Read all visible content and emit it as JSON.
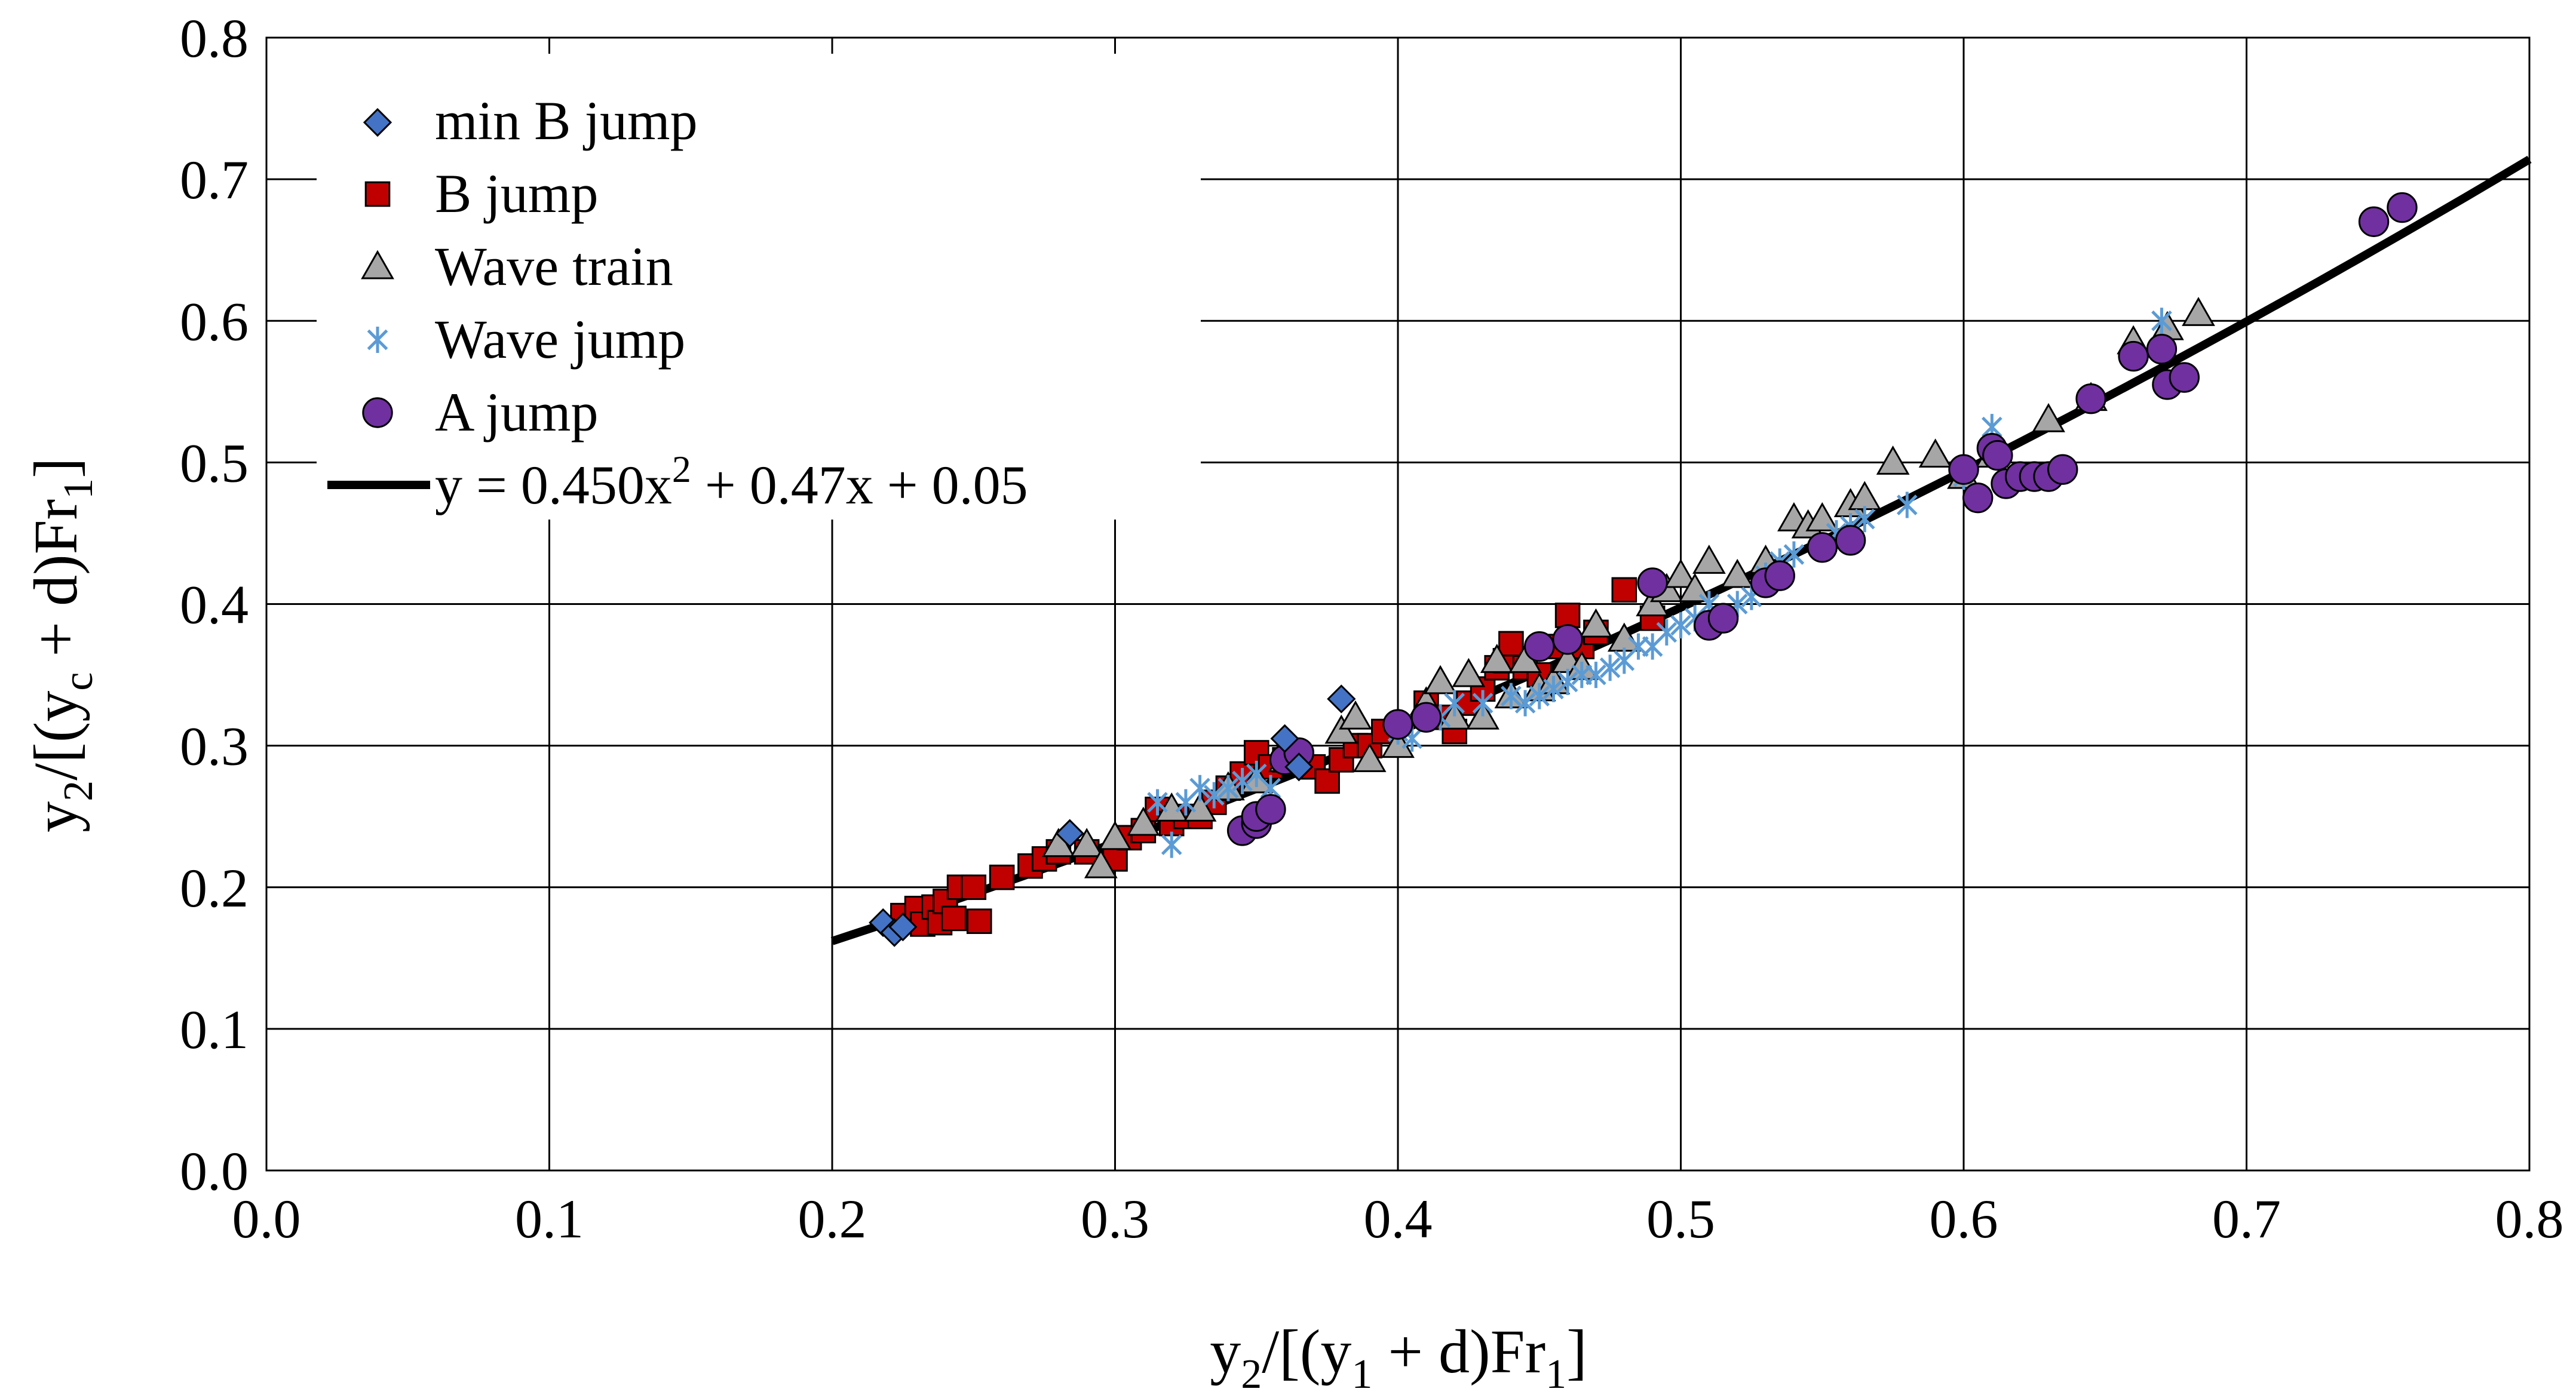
{
  "chart_data": {
    "type": "scatter",
    "title": "",
    "xlabel": "y2/[(y1 + d)Fr1]",
    "ylabel": "y2/[(yc + d)Fr1]",
    "xlim": [
      0.0,
      0.8
    ],
    "ylim": [
      0.0,
      0.8
    ],
    "x_ticks": [
      "0.0",
      "0.1",
      "0.2",
      "0.3",
      "0.4",
      "0.5",
      "0.6",
      "0.7",
      "0.8"
    ],
    "y_ticks": [
      "0.0",
      "0.1",
      "0.2",
      "0.3",
      "0.4",
      "0.5",
      "0.6",
      "0.7",
      "0.8"
    ],
    "grid": true,
    "legend_position": "top-left",
    "colors": {
      "min_b": "#4472c4",
      "b_jump": "#c00000",
      "wave_train": "#a6a6a6",
      "wave_jump": "#5b9bd5",
      "a_jump": "#7030a0",
      "fit": "#000000"
    },
    "series": [
      {
        "name": "min B jump",
        "marker": "diamond",
        "color": "#4472c4",
        "points": [
          [
            0.218,
            0.175
          ],
          [
            0.222,
            0.168
          ],
          [
            0.225,
            0.172
          ],
          [
            0.284,
            0.238
          ],
          [
            0.36,
            0.305
          ],
          [
            0.365,
            0.285
          ],
          [
            0.38,
            0.333
          ]
        ]
      },
      {
        "name": "B jump",
        "marker": "square",
        "color": "#c00000",
        "points": [
          [
            0.225,
            0.18
          ],
          [
            0.23,
            0.185
          ],
          [
            0.232,
            0.174
          ],
          [
            0.236,
            0.186
          ],
          [
            0.238,
            0.175
          ],
          [
            0.24,
            0.19
          ],
          [
            0.243,
            0.178
          ],
          [
            0.245,
            0.2
          ],
          [
            0.25,
            0.2
          ],
          [
            0.252,
            0.176
          ],
          [
            0.26,
            0.207
          ],
          [
            0.27,
            0.215
          ],
          [
            0.275,
            0.22
          ],
          [
            0.28,
            0.225
          ],
          [
            0.29,
            0.225
          ],
          [
            0.3,
            0.22
          ],
          [
            0.305,
            0.235
          ],
          [
            0.31,
            0.24
          ],
          [
            0.315,
            0.255
          ],
          [
            0.32,
            0.245
          ],
          [
            0.325,
            0.25
          ],
          [
            0.33,
            0.25
          ],
          [
            0.335,
            0.26
          ],
          [
            0.34,
            0.27
          ],
          [
            0.345,
            0.28
          ],
          [
            0.35,
            0.295
          ],
          [
            0.355,
            0.285
          ],
          [
            0.36,
            0.29
          ],
          [
            0.37,
            0.285
          ],
          [
            0.375,
            0.275
          ],
          [
            0.38,
            0.29
          ],
          [
            0.385,
            0.3
          ],
          [
            0.39,
            0.3
          ],
          [
            0.395,
            0.31
          ],
          [
            0.41,
            0.33
          ],
          [
            0.415,
            0.32
          ],
          [
            0.42,
            0.31
          ],
          [
            0.425,
            0.33
          ],
          [
            0.43,
            0.34
          ],
          [
            0.435,
            0.355
          ],
          [
            0.438,
            0.36
          ],
          [
            0.44,
            0.372
          ],
          [
            0.445,
            0.355
          ],
          [
            0.45,
            0.35
          ],
          [
            0.455,
            0.37
          ],
          [
            0.46,
            0.392
          ],
          [
            0.465,
            0.37
          ],
          [
            0.47,
            0.38
          ],
          [
            0.48,
            0.41
          ],
          [
            0.49,
            0.39
          ]
        ]
      },
      {
        "name": "Wave train",
        "marker": "triangle",
        "color": "#a6a6a6",
        "points": [
          [
            0.28,
            0.23
          ],
          [
            0.29,
            0.23
          ],
          [
            0.295,
            0.215
          ],
          [
            0.3,
            0.235
          ],
          [
            0.31,
            0.245
          ],
          [
            0.32,
            0.255
          ],
          [
            0.33,
            0.255
          ],
          [
            0.34,
            0.27
          ],
          [
            0.35,
            0.275
          ],
          [
            0.36,
            0.29
          ],
          [
            0.38,
            0.31
          ],
          [
            0.385,
            0.32
          ],
          [
            0.39,
            0.29
          ],
          [
            0.4,
            0.3
          ],
          [
            0.41,
            0.33
          ],
          [
            0.415,
            0.345
          ],
          [
            0.42,
            0.32
          ],
          [
            0.425,
            0.35
          ],
          [
            0.43,
            0.32
          ],
          [
            0.435,
            0.36
          ],
          [
            0.44,
            0.335
          ],
          [
            0.445,
            0.36
          ],
          [
            0.45,
            0.34
          ],
          [
            0.455,
            0.345
          ],
          [
            0.46,
            0.36
          ],
          [
            0.465,
            0.355
          ],
          [
            0.47,
            0.385
          ],
          [
            0.48,
            0.375
          ],
          [
            0.49,
            0.4
          ],
          [
            0.495,
            0.41
          ],
          [
            0.5,
            0.42
          ],
          [
            0.505,
            0.41
          ],
          [
            0.51,
            0.43
          ],
          [
            0.52,
            0.42
          ],
          [
            0.53,
            0.43
          ],
          [
            0.54,
            0.46
          ],
          [
            0.545,
            0.455
          ],
          [
            0.55,
            0.46
          ],
          [
            0.56,
            0.47
          ],
          [
            0.565,
            0.475
          ],
          [
            0.575,
            0.5
          ],
          [
            0.59,
            0.505
          ],
          [
            0.6,
            0.49
          ],
          [
            0.61,
            0.505
          ],
          [
            0.63,
            0.53
          ],
          [
            0.645,
            0.545
          ],
          [
            0.66,
            0.585
          ],
          [
            0.672,
            0.595
          ],
          [
            0.683,
            0.605
          ]
        ]
      },
      {
        "name": "Wave jump",
        "marker": "asterisk",
        "color": "#5b9bd5",
        "points": [
          [
            0.315,
            0.26
          ],
          [
            0.32,
            0.23
          ],
          [
            0.325,
            0.26
          ],
          [
            0.33,
            0.27
          ],
          [
            0.335,
            0.265
          ],
          [
            0.34,
            0.27
          ],
          [
            0.345,
            0.275
          ],
          [
            0.35,
            0.28
          ],
          [
            0.355,
            0.27
          ],
          [
            0.4,
            0.31
          ],
          [
            0.405,
            0.305
          ],
          [
            0.41,
            0.32
          ],
          [
            0.415,
            0.32
          ],
          [
            0.42,
            0.33
          ],
          [
            0.43,
            0.33
          ],
          [
            0.44,
            0.335
          ],
          [
            0.445,
            0.33
          ],
          [
            0.45,
            0.335
          ],
          [
            0.455,
            0.34
          ],
          [
            0.46,
            0.345
          ],
          [
            0.465,
            0.35
          ],
          [
            0.47,
            0.35
          ],
          [
            0.475,
            0.355
          ],
          [
            0.48,
            0.36
          ],
          [
            0.485,
            0.37
          ],
          [
            0.49,
            0.37
          ],
          [
            0.495,
            0.38
          ],
          [
            0.5,
            0.385
          ],
          [
            0.505,
            0.39
          ],
          [
            0.51,
            0.4
          ],
          [
            0.52,
            0.4
          ],
          [
            0.525,
            0.405
          ],
          [
            0.53,
            0.42
          ],
          [
            0.535,
            0.43
          ],
          [
            0.54,
            0.435
          ],
          [
            0.55,
            0.44
          ],
          [
            0.555,
            0.45
          ],
          [
            0.56,
            0.455
          ],
          [
            0.565,
            0.46
          ],
          [
            0.58,
            0.47
          ],
          [
            0.6,
            0.49
          ],
          [
            0.61,
            0.525
          ],
          [
            0.67,
            0.6
          ]
        ]
      },
      {
        "name": "A jump",
        "marker": "circle",
        "color": "#7030a0",
        "points": [
          [
            0.345,
            0.24
          ],
          [
            0.35,
            0.245
          ],
          [
            0.35,
            0.25
          ],
          [
            0.355,
            0.255
          ],
          [
            0.36,
            0.29
          ],
          [
            0.365,
            0.295
          ],
          [
            0.4,
            0.315
          ],
          [
            0.41,
            0.32
          ],
          [
            0.45,
            0.37
          ],
          [
            0.46,
            0.375
          ],
          [
            0.49,
            0.415
          ],
          [
            0.51,
            0.385
          ],
          [
            0.515,
            0.39
          ],
          [
            0.53,
            0.415
          ],
          [
            0.535,
            0.42
          ],
          [
            0.55,
            0.44
          ],
          [
            0.56,
            0.445
          ],
          [
            0.6,
            0.495
          ],
          [
            0.605,
            0.475
          ],
          [
            0.61,
            0.51
          ],
          [
            0.612,
            0.505
          ],
          [
            0.615,
            0.485
          ],
          [
            0.62,
            0.49
          ],
          [
            0.625,
            0.49
          ],
          [
            0.63,
            0.49
          ],
          [
            0.635,
            0.495
          ],
          [
            0.645,
            0.545
          ],
          [
            0.66,
            0.575
          ],
          [
            0.67,
            0.58
          ],
          [
            0.672,
            0.555
          ],
          [
            0.678,
            0.56
          ],
          [
            0.745,
            0.67
          ],
          [
            0.755,
            0.68
          ]
        ]
      }
    ],
    "fit_line": {
      "name": "y = 0.450x2 + 0.47x + 0.05",
      "label_base": "y = 0.450x",
      "label_sup": "2",
      "label_rest": " + 0.47x + 0.05",
      "coefficients": [
        0.45,
        0.47,
        0.05
      ],
      "x_range": [
        0.2,
        0.8
      ]
    },
    "xlabel_parts": {
      "a": "y",
      "a_sub": "2",
      "b": "/[(y",
      "b_sub": "1",
      "c": " + d)Fr",
      "c_sub": "1",
      "d": "]"
    },
    "ylabel_parts": {
      "a": "y",
      "a_sub": "2",
      "b": "/[(y",
      "b_sub": "c",
      "c": " + d)Fr",
      "c_sub": "1",
      "d": "]"
    }
  }
}
